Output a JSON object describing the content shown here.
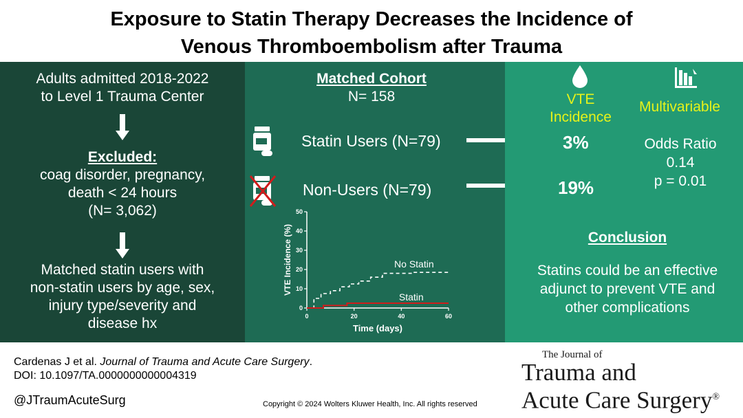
{
  "title": {
    "line1": "Exposure to Statin Therapy Decreases the Incidence of",
    "line2": "Venous Thromboembolism after Trauma"
  },
  "left_panel": {
    "intro_line1": "Adults admitted 2018-2022",
    "intro_line2": "to Level 1 Trauma Center",
    "excluded_heading": "Excluded:",
    "excluded_line1": "coag disorder, pregnancy,",
    "excluded_line2": "death < 24 hours",
    "excluded_line3": "(N= 3,062)",
    "matched_line1": "Matched statin users with",
    "matched_line2": "non-statin users by age, sex,",
    "matched_line3": "injury type/severity and",
    "matched_line4": "disease hx"
  },
  "middle_panel": {
    "cohort_heading": "Matched Cohort",
    "cohort_n": "N= 158",
    "statin_users": "Statin Users (N=79)",
    "non_users": "Non-Users (N=79)"
  },
  "right_panel": {
    "vte_line1": "VTE",
    "vte_line2": "Incidence",
    "multivariable": "Multivariable",
    "statin_pct": "3%",
    "nonuser_pct": "19%",
    "odds_label": "Odds Ratio",
    "odds_value": "0.14",
    "p_value": "p = 0.01",
    "conclusion_heading": "Conclusion",
    "conclusion_line1": "Statins could be an effective",
    "conclusion_line2": "adjunct to prevent VTE and",
    "conclusion_line3": "other complications"
  },
  "chart_data": {
    "type": "line",
    "xlabel": "Time (days)",
    "ylabel": "VTE Incidence (%)",
    "xlim": [
      0,
      60
    ],
    "ylim": [
      0,
      50
    ],
    "x_ticks": [
      "0",
      "20",
      "40",
      "60"
    ],
    "y_ticks": [
      "0",
      "10",
      "20",
      "30",
      "40",
      "50"
    ],
    "series": [
      {
        "name": "No Statin",
        "style": "dashed",
        "color": "#ffffff",
        "x": [
          0,
          3,
          3,
          6,
          6,
          10,
          10,
          14,
          14,
          18,
          18,
          22,
          22,
          27,
          27,
          32,
          32,
          36,
          36,
          45,
          45,
          60
        ],
        "y": [
          0,
          0,
          5,
          5,
          7.5,
          7.5,
          9,
          9,
          11,
          11,
          12.5,
          12.5,
          14,
          14,
          16,
          16,
          18,
          18,
          18,
          18,
          18.5,
          18.5
        ]
      },
      {
        "name": "Statin",
        "style": "solid",
        "color": "#d01c1c",
        "x": [
          0,
          7,
          7,
          17,
          17,
          60
        ],
        "y": [
          0,
          0,
          1.3,
          1.3,
          2.5,
          2.5
        ]
      }
    ],
    "annotations": [
      "No Statin",
      "Statin"
    ]
  },
  "footer": {
    "citation_authors": "Cardenas J et al. ",
    "citation_journal": "Journal of Trauma and Acute Care Surgery",
    "citation_end": ".",
    "doi": "DOI: 10.1097/TA.0000000000004319",
    "handle": "@JTraumAcuteSurg",
    "copyright": "Copyright © 2024  Wolters Kluwer Health, Inc. All rights reserved",
    "journal_small": "The Journal of",
    "journal_line1": "Trauma and",
    "journal_line2": "Acute Care Surgery",
    "registered": "®"
  }
}
